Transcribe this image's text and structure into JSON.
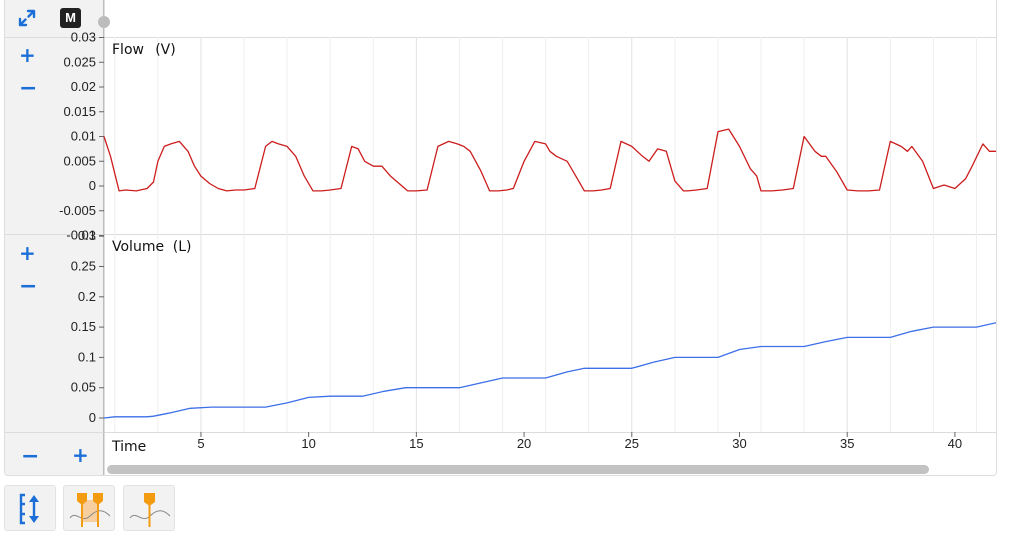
{
  "toolbar": {
    "mode_label": "M"
  },
  "colors": {
    "flow_line": "#cc1d1d",
    "volume_line": "#3c6fe8",
    "control_blue": "#1d6fd8",
    "marker_orange": "#f39c12"
  },
  "icons": {
    "expand": "expand-arrows-icon",
    "zoom_in": "plus-icon",
    "zoom_out": "minus-icon",
    "autoscale": "autoscale-vertical-icon",
    "dual_cursor": "dual-cursor-icon",
    "single_cursor": "single-cursor-icon"
  },
  "controls": {
    "plus": "+",
    "minus": "−"
  },
  "chart_data": [
    {
      "type": "line",
      "title": "Flow",
      "unit": "(V)",
      "ylim": [
        -0.01,
        0.03
      ],
      "y_ticks": [
        "0.03",
        "0.025",
        "0.02",
        "0.015",
        "0.01",
        "0.005",
        "0",
        "-0.005",
        "-0.01"
      ],
      "y_tick_values": [
        0.03,
        0.025,
        0.02,
        0.015,
        0.01,
        0.005,
        0,
        -0.005,
        -0.01
      ],
      "series": [
        {
          "x": [
            0.5,
            0.8,
            1.2,
            1.5,
            2.0,
            2.5,
            2.8,
            3.0,
            3.3,
            3.6,
            4.0,
            4.4,
            4.7,
            5.0,
            5.4,
            5.8,
            6.2,
            6.6,
            7.0,
            7.5,
            8.0,
            8.3,
            8.6,
            9.0,
            9.4,
            9.8,
            10.2,
            10.6,
            11.0,
            11.5,
            12.0,
            12.3,
            12.6,
            13.0,
            13.4,
            13.8,
            14.2,
            14.6,
            15.0,
            15.5,
            16.0,
            16.5,
            16.9,
            17.2,
            17.5,
            18.0,
            18.4,
            18.8,
            19.2,
            19.5,
            20.0,
            20.5,
            21.0,
            21.2,
            21.5,
            22.0,
            22.4,
            22.8,
            23.2,
            23.6,
            24.0,
            24.5,
            25.0,
            25.5,
            25.8,
            26.2,
            26.6,
            27.0,
            27.4,
            27.6,
            28.0,
            28.5,
            29.0,
            29.5,
            30.0,
            30.5,
            30.8,
            31.0,
            31.5,
            32.0,
            32.5,
            33.0,
            33.5,
            33.8,
            34.0,
            34.5,
            35.0,
            35.5,
            36.0,
            36.5,
            37.0,
            37.5,
            37.8,
            38.0,
            38.5,
            39.0,
            39.5,
            40.0,
            40.5,
            40.8,
            41.3,
            41.6,
            42.0
          ],
          "y": [
            0.01,
            0.006,
            -0.001,
            -0.0008,
            -0.001,
            -0.0005,
            0.0008,
            0.005,
            0.008,
            0.0085,
            0.009,
            0.007,
            0.004,
            0.002,
            0.0005,
            -0.0005,
            -0.001,
            -0.0008,
            -0.0008,
            -0.0005,
            0.008,
            0.009,
            0.0085,
            0.008,
            0.006,
            0.002,
            -0.001,
            -0.001,
            -0.0008,
            -0.0005,
            0.008,
            0.0075,
            0.005,
            0.004,
            0.004,
            0.002,
            0.0005,
            -0.001,
            -0.001,
            -0.0008,
            0.008,
            0.009,
            0.0085,
            0.008,
            0.007,
            0.003,
            -0.001,
            -0.001,
            -0.0008,
            -0.0005,
            0.005,
            0.009,
            0.0085,
            0.007,
            0.006,
            0.005,
            0.002,
            -0.001,
            -0.001,
            -0.0008,
            -0.0005,
            0.009,
            0.008,
            0.006,
            0.005,
            0.0075,
            0.007,
            0.001,
            -0.001,
            -0.001,
            -0.0008,
            -0.0005,
            0.011,
            0.0115,
            0.008,
            0.0035,
            0.002,
            -0.001,
            -0.001,
            -0.0008,
            -0.0005,
            0.01,
            0.007,
            0.006,
            0.006,
            0.003,
            -0.0008,
            -0.001,
            -0.001,
            -0.0008,
            0.009,
            0.008,
            0.007,
            0.008,
            0.005,
            -0.0005,
            0.0002,
            -0.0005,
            0.0015,
            0.004,
            0.0085,
            0.007,
            0.007
          ]
        }
      ]
    },
    {
      "type": "line",
      "title": "Volume",
      "unit": "(L)",
      "ylim": [
        -0.01,
        0.3
      ],
      "y_ticks": [
        "0.3",
        "0.25",
        "0.2",
        "0.15",
        "0.1",
        "0.05",
        "0"
      ],
      "y_tick_values": [
        0.3,
        0.25,
        0.2,
        0.15,
        0.1,
        0.05,
        0
      ],
      "series": [
        {
          "x": [
            0.5,
            1.0,
            2.5,
            2.8,
            3.5,
            4.5,
            5.5,
            6.5,
            7.5,
            8.0,
            9.0,
            10.0,
            11.0,
            12.0,
            12.5,
            13.5,
            14.5,
            16.0,
            17.0,
            18.0,
            19.0,
            20.0,
            21.0,
            22.0,
            22.8,
            24.0,
            25.0,
            26.0,
            27.0,
            28.0,
            29.0,
            30.0,
            31.0,
            32.0,
            33.0,
            34.0,
            35.0,
            36.0,
            37.0,
            38.0,
            39.0,
            40.0,
            41.0,
            42.0
          ],
          "y": [
            0.0,
            0.002,
            0.002,
            0.003,
            0.008,
            0.016,
            0.018,
            0.018,
            0.018,
            0.018,
            0.025,
            0.034,
            0.036,
            0.036,
            0.036,
            0.044,
            0.05,
            0.05,
            0.05,
            0.058,
            0.066,
            0.066,
            0.066,
            0.076,
            0.082,
            0.082,
            0.082,
            0.092,
            0.1,
            0.1,
            0.1,
            0.113,
            0.118,
            0.118,
            0.118,
            0.126,
            0.133,
            0.133,
            0.133,
            0.143,
            0.15,
            0.15,
            0.15,
            0.158
          ]
        }
      ]
    }
  ],
  "x_axis": {
    "title": "Time",
    "xlim": [
      0.5,
      42.0
    ],
    "tick_labels": [
      "5",
      "10",
      "15",
      "20",
      "25",
      "30",
      "35",
      "40"
    ],
    "tick_values": [
      5,
      10,
      15,
      20,
      25,
      30,
      35,
      40
    ]
  }
}
